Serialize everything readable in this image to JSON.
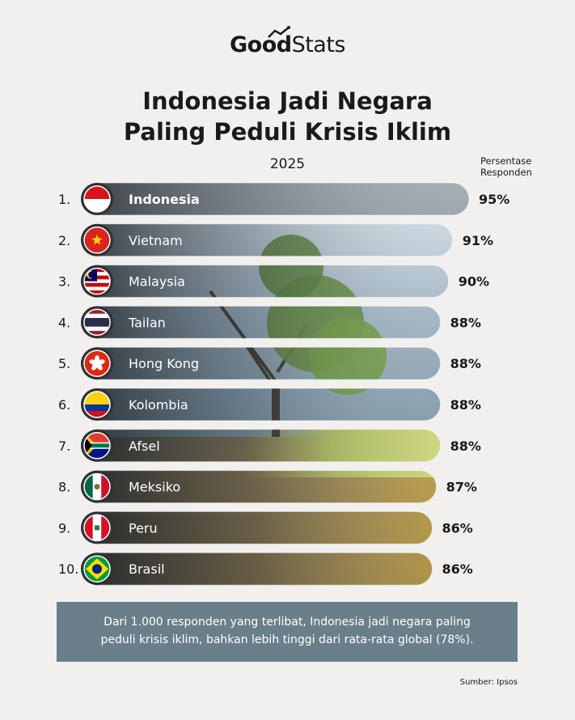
{
  "header": {
    "logo_good": "Good",
    "logo_stats": "Stats",
    "title_line1": "Indonesia Jadi Negara",
    "title_line2": "Paling Peduli Krisis Iklim",
    "year": "2025",
    "column_header_line1": "Persentase",
    "column_header_line2": "Responden"
  },
  "chart_data": {
    "type": "bar",
    "orientation": "horizontal",
    "categories": [
      "Indonesia",
      "Vietnam",
      "Malaysia",
      "Tailan",
      "Hong Kong",
      "Kolombia",
      "Afsel",
      "Meksiko",
      "Peru",
      "Brasil"
    ],
    "ranks": [
      "1.",
      "2.",
      "3.",
      "4.",
      "5.",
      "6.",
      "7.",
      "8.",
      "9.",
      "10."
    ],
    "values": [
      95,
      91,
      90,
      88,
      88,
      88,
      88,
      87,
      86,
      86
    ],
    "value_labels": [
      "95%",
      "91%",
      "90%",
      "88%",
      "88%",
      "88%",
      "88%",
      "87%",
      "86%",
      "86%"
    ],
    "flags": [
      "indonesia-flag-icon",
      "vietnam-flag-icon",
      "malaysia-flag-icon",
      "thailand-flag-icon",
      "hong-kong-flag-icon",
      "colombia-flag-icon",
      "south-africa-flag-icon",
      "mexico-flag-icon",
      "peru-flag-icon",
      "brazil-flag-icon"
    ],
    "highlight_index": 0,
    "xlim": [
      0,
      100
    ],
    "colors": {
      "highlight_bar": "#3f4448",
      "label": "#ffffff"
    }
  },
  "note": {
    "line1": "Dari 1.000 responden yang terlibat, Indonesia jadi negara paling",
    "line2": "peduli krisis iklim, bahkan lebih tinggi dari rata-rata global (78%)."
  },
  "source": "Sumber: Ipsos"
}
